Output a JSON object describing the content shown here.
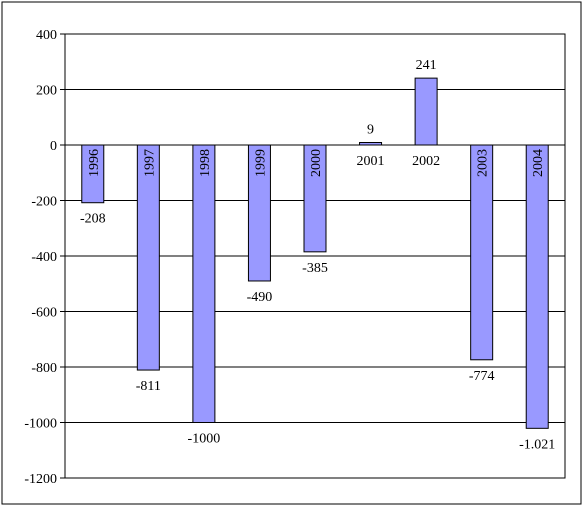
{
  "chart_data": {
    "type": "bar",
    "categories": [
      "1996",
      "1997",
      "1998",
      "1999",
      "2000",
      "2001",
      "2002",
      "2003",
      "2004"
    ],
    "values": [
      -208,
      -811,
      -1000,
      -490,
      -385,
      9,
      241,
      -774,
      -1021
    ],
    "data_labels": [
      "-208",
      "-811",
      "-1000",
      "-490",
      "-385",
      "9",
      "241",
      "-774",
      "-1.021"
    ],
    "title": "",
    "xlabel": "",
    "ylabel": "",
    "ylim": [
      -1200,
      400
    ],
    "yticks": [
      400,
      200,
      0,
      -200,
      -400,
      -600,
      -800,
      -1000,
      -1200
    ],
    "grid": true,
    "legend": "none",
    "bar_color": "#9999ff",
    "bar_edge_color": "#000000",
    "category_labels_inside_bars": true
  }
}
